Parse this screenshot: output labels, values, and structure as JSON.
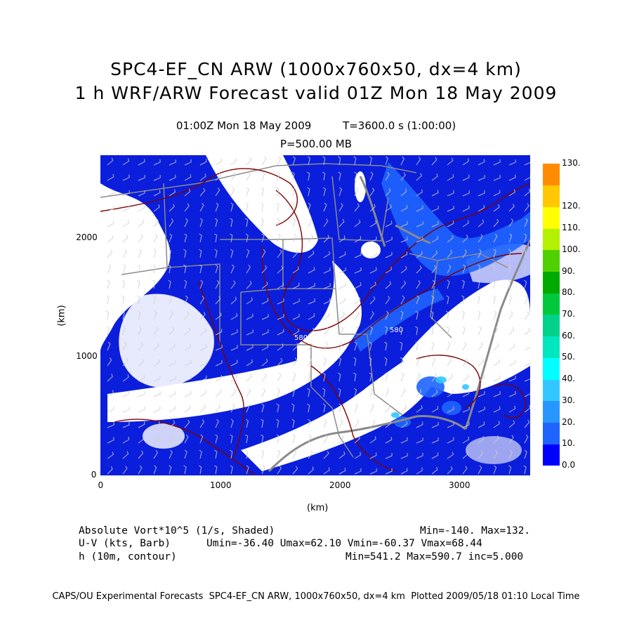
{
  "header": {
    "title_line1": "SPC4-EF_CN ARW (1000x760x50, dx=4 km)",
    "title_line2": "1 h WRF/ARW Forecast valid 01Z Mon 18 May 2009",
    "valid_time": "01:00Z Mon 18 May 2009",
    "elapsed": "T=3600.0 s (1:00:00)",
    "level": "P=500.00 MB"
  },
  "axes": {
    "x_label": "(km)",
    "y_label": "(km)",
    "x_ticks": [
      {
        "value": 0,
        "label": "0"
      },
      {
        "value": 1000,
        "label": "1000"
      },
      {
        "value": 2000,
        "label": "2000"
      },
      {
        "value": 3000,
        "label": "3000"
      }
    ],
    "y_ticks": [
      {
        "value": 0,
        "label": "0"
      },
      {
        "value": 1000,
        "label": "1000"
      },
      {
        "value": 2000,
        "label": "2000"
      }
    ],
    "x_range": [
      0,
      3600
    ],
    "y_range": [
      0,
      2700
    ]
  },
  "legend": {
    "bins": [
      {
        "label": "0.0",
        "color": "#0000ff"
      },
      {
        "label": "10.",
        "color": "#1e64ff"
      },
      {
        "label": "20.",
        "color": "#2896ff"
      },
      {
        "label": "30.",
        "color": "#32c8ff"
      },
      {
        "label": "40.",
        "color": "#00ffff"
      },
      {
        "label": "50.",
        "color": "#00e6be"
      },
      {
        "label": "60.",
        "color": "#00d28c"
      },
      {
        "label": "70.",
        "color": "#00c83c"
      },
      {
        "label": "80.",
        "color": "#00aa00"
      },
      {
        "label": "90.",
        "color": "#50d000"
      },
      {
        "label": "100.",
        "color": "#b4f000"
      },
      {
        "label": "110.",
        "color": "#ffff00"
      },
      {
        "label": "120.",
        "color": "#ffc800"
      },
      {
        "label": "130.",
        "color": "#ff8c00"
      }
    ]
  },
  "fields": {
    "vort_name": "Absolute Vort*10^5 (1/s, Shaded)",
    "vort_stats": "Min=-140. Max=132.",
    "wind_name": "U-V (kts, Barb)",
    "wind_stats": "Umin=-36.40 Umax=62.10 Vmin=-60.37 Vmax=68.44",
    "height_name": "h (10m, contour)",
    "height_stats": "Min=541.2 Max=590.7 inc=5.000"
  },
  "contour_labels": [
    "580",
    "580"
  ],
  "footer": "CAPS/OU Experimental Forecasts  SPC4-EF_CN ARW, 1000x760x50, dx=4 km  Plotted 2009/05/18 01:10 Local Time"
}
